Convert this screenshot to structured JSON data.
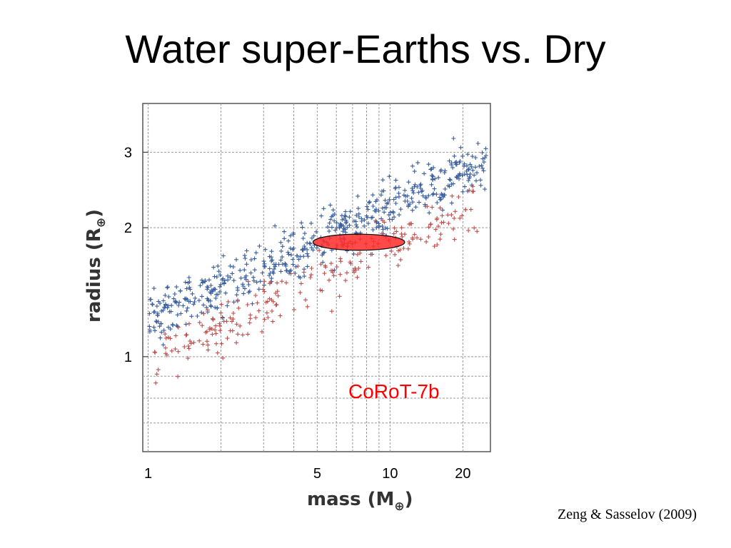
{
  "slide": {
    "title": "Water super-Earths vs. Dry",
    "citation": "Zeng & Sasselov (2009)"
  },
  "colors": {
    "water_series": "#3a5f9e",
    "dry_series": "#c0504d",
    "highlight_fill": "#ff2a2a",
    "annotation_text": "#ff0000",
    "grid": "#9a9a9a"
  },
  "chart_data": {
    "type": "scatter",
    "x_scale": "log",
    "y_scale": "log",
    "xlim": [
      0.95,
      26
    ],
    "ylim": [
      0.6,
      3.9
    ],
    "xlabel_main": "mass (M",
    "xlabel_sub": "⊕",
    "xlabel_close": ")",
    "ylabel_main": "radius (R",
    "ylabel_sub": "⊕",
    "ylabel_close": ")",
    "x_ticks": [
      1,
      5,
      10,
      20
    ],
    "x_tick_labels": [
      "1",
      "5",
      "10",
      "20"
    ],
    "y_ticks": [
      1,
      2,
      3
    ],
    "y_tick_labels": [
      "1",
      "2",
      "3"
    ],
    "grid": true,
    "series": [
      {
        "color": "#3a5f9e",
        "marker": "+",
        "trend": {
          "a": 1.2,
          "b": 0.27,
          "scatter": 0.07
        },
        "x_range": [
          1.0,
          25.0
        ],
        "count": 560
      },
      {
        "color": "#c0504d",
        "marker": "+",
        "trend": {
          "a": 0.98,
          "b": 0.27,
          "scatter": 0.07
        },
        "x_range": [
          1.0,
          23.0
        ],
        "count": 240
      }
    ],
    "highlight": {
      "label": "CoRoT-7b",
      "x_range": [
        4.8,
        11.5
      ],
      "y_center": 1.85,
      "y_halfheight": 0.08
    }
  }
}
